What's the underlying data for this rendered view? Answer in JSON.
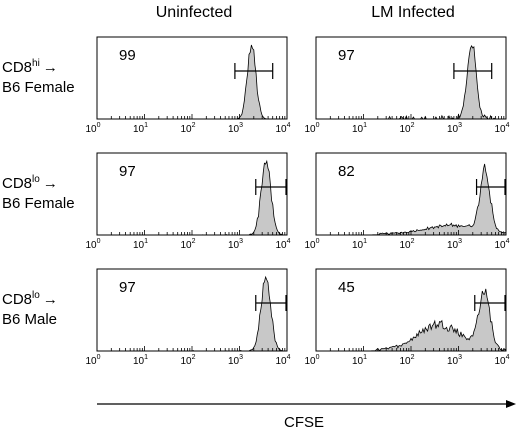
{
  "chart_data": {
    "type": "histogram-grid",
    "column_titles": [
      "Uninfected",
      "LM Infected"
    ],
    "row_labels": [
      {
        "main": "CD8",
        "sup": "hi",
        "line2": "B6 Female"
      },
      {
        "main": "CD8",
        "sup": "lo",
        "line2": "B6 Female"
      },
      {
        "main": "CD8",
        "sup": "lo",
        "line2": "B6 Male"
      }
    ],
    "arrow_glyph": "→",
    "xlabel": "CFSE",
    "x_scale": "log",
    "xlim": [
      1,
      10000
    ],
    "x_ticks": [
      {
        "base": "10",
        "exp": "0"
      },
      {
        "base": "10",
        "exp": "1"
      },
      {
        "base": "10",
        "exp": "2"
      },
      {
        "base": "10",
        "exp": "3"
      },
      {
        "base": "10",
        "exp": "4"
      }
    ],
    "fill_color": "#c8c8c8",
    "panels": [
      {
        "row": 0,
        "col": 0,
        "percent": "99",
        "gate": [
          800,
          5000
        ],
        "peaks": [
          {
            "center": 1800,
            "sigma": 0.09,
            "height": 1.0
          }
        ],
        "noise": 0
      },
      {
        "row": 0,
        "col": 1,
        "percent": "97",
        "gate": [
          800,
          5000
        ],
        "peaks": [
          {
            "center": 1900,
            "sigma": 0.09,
            "height": 1.0
          }
        ],
        "noise": 0.06
      },
      {
        "row": 1,
        "col": 0,
        "percent": "97",
        "gate": [
          2200,
          10000
        ],
        "peaks": [
          {
            "center": 3600,
            "sigma": 0.1,
            "height": 1.0
          }
        ],
        "noise": 0.01
      },
      {
        "row": 1,
        "col": 1,
        "percent": "82",
        "gate": [
          2400,
          10000
        ],
        "peaks": [
          {
            "center": 3600,
            "sigma": 0.1,
            "height": 0.85
          },
          {
            "center": 800,
            "sigma": 0.6,
            "height": 0.12
          }
        ],
        "noise": 0.02
      },
      {
        "row": 2,
        "col": 0,
        "percent": "97",
        "gate": [
          2200,
          10000
        ],
        "peaks": [
          {
            "center": 3600,
            "sigma": 0.1,
            "height": 1.0
          }
        ],
        "noise": 0.01
      },
      {
        "row": 2,
        "col": 1,
        "percent": "45",
        "gate": [
          2200,
          10000
        ],
        "peaks": [
          {
            "center": 3500,
            "sigma": 0.12,
            "height": 0.75
          },
          {
            "center": 400,
            "sigma": 0.45,
            "height": 0.35
          }
        ],
        "noise": 0.03
      }
    ]
  }
}
